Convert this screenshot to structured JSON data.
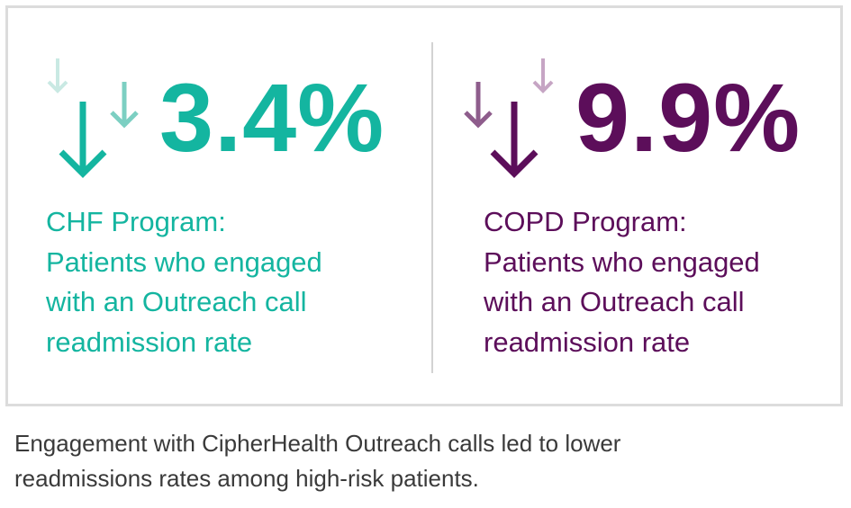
{
  "chf": {
    "value": "3.4%",
    "lines": [
      "CHF Program:",
      "Patients who engaged",
      "with an Outreach call",
      "readmission rate"
    ],
    "color": "#14b5a0",
    "arrow_colors": [
      "#14b5a0",
      "#7ccfc2",
      "#c9e9e3"
    ],
    "icon": "down-arrows-icon"
  },
  "copd": {
    "value": "9.9%",
    "lines": [
      "COPD Program:",
      "Patients who engaged",
      "with an Outreach call",
      "readmission rate"
    ],
    "color": "#5c0e5a",
    "arrow_colors": [
      "#5c0e5a",
      "#8e5d8c",
      "#c6a5c4"
    ],
    "icon": "down-arrows-icon"
  },
  "caption": {
    "lines": [
      "Engagement with CipherHealth Outreach calls led to lower",
      "readmissions rates among high-risk patients."
    ],
    "color": "#3a3a3a"
  }
}
